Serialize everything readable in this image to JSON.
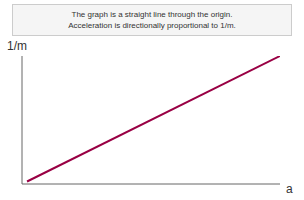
{
  "chart_data": {
    "type": "line",
    "x": [
      0,
      1
    ],
    "values": [
      0,
      1
    ],
    "color": "#990044",
    "xlabel": "a",
    "ylabel": "1/m",
    "annotation": "The graph is a straight line through the origin.\nAcceleration is directionally proportional to 1/m.",
    "xlim": [
      -0.02,
      1.0
    ],
    "ylim": [
      -0.02,
      1.0
    ],
    "tick_labels": false,
    "grid": false
  }
}
